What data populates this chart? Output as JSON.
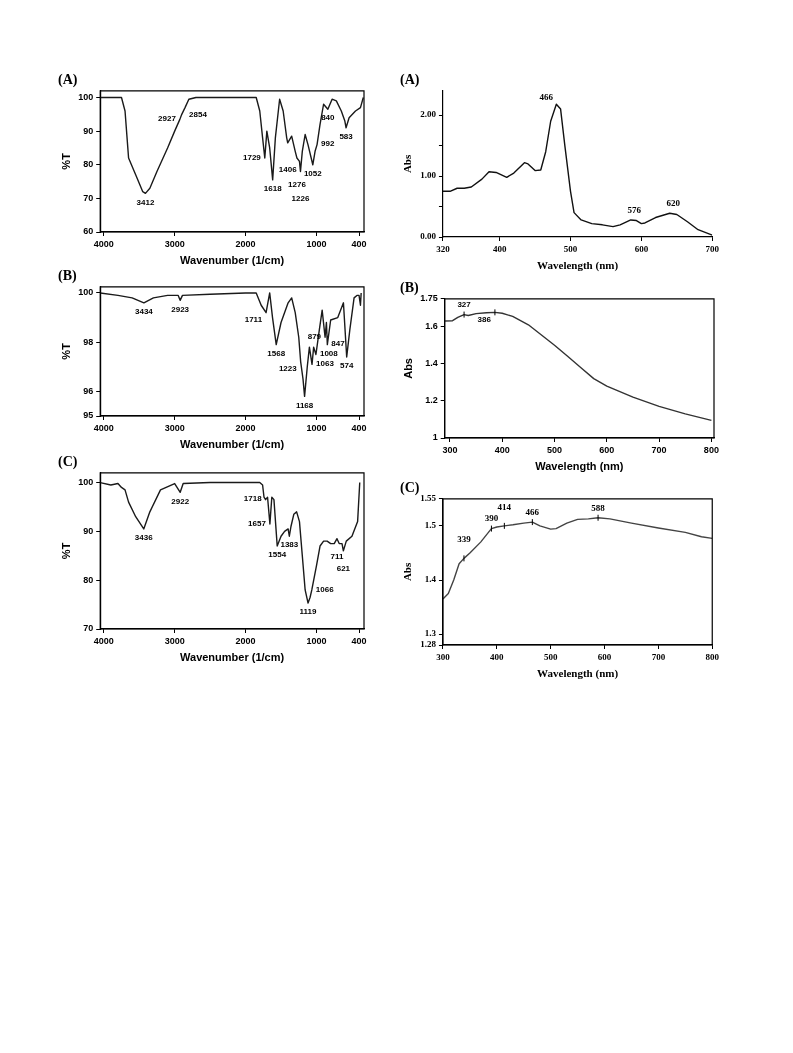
{
  "chart_data": [
    {
      "type": "line",
      "title": "(A)",
      "xlabel": "Wavenumber (1/cm)",
      "ylabel": "%T",
      "color": "#1a1a1a",
      "marker": "none",
      "xlim": [
        4050,
        330
      ],
      "xticks": [
        4000,
        3000,
        2000,
        1000,
        400
      ],
      "ylim": [
        60,
        102
      ],
      "yticks": [
        60,
        70,
        80,
        90,
        100
      ],
      "x": [
        4050,
        3750,
        3700,
        3650,
        3550,
        3450,
        3412,
        3350,
        3250,
        3100,
        3000,
        2927,
        2900,
        2854,
        2800,
        2700,
        2400,
        2000,
        1850,
        1800,
        1760,
        1729,
        1700,
        1660,
        1618,
        1580,
        1520,
        1470,
        1420,
        1406,
        1350,
        1300,
        1276,
        1240,
        1226,
        1200,
        1160,
        1120,
        1052,
        1020,
        992,
        950,
        900,
        840,
        780,
        720,
        650,
        600,
        583,
        540,
        450,
        380,
        340
      ],
      "values": [
        100,
        100,
        96,
        82,
        77,
        72,
        71.5,
        73,
        78,
        85,
        90,
        93.5,
        95,
        97,
        99.5,
        100,
        100,
        100,
        100,
        96,
        88,
        82,
        90,
        85,
        75.5,
        88,
        99.5,
        96,
        88,
        86.5,
        88.5,
        84,
        82,
        81,
        78,
        84,
        89,
        86,
        80,
        84,
        86,
        92,
        98,
        96.5,
        99.5,
        99,
        96,
        93,
        91,
        94,
        96,
        97,
        100
      ],
      "annotations": [
        {
          "text": "3412",
          "x": 3412,
          "y": 71.5
        },
        {
          "text": "2927",
          "x": 2927,
          "y": 93.5
        },
        {
          "text": "2854",
          "x": 2854,
          "y": 97
        },
        {
          "text": "1729",
          "x": 1729,
          "y": 82
        },
        {
          "text": "1618",
          "x": 1618,
          "y": 75.5
        },
        {
          "text": "1406",
          "x": 1406,
          "y": 86.5
        },
        {
          "text": "1276",
          "x": 1276,
          "y": 82
        },
        {
          "text": "1226",
          "x": 1226,
          "y": 78
        },
        {
          "text": "1052",
          "x": 1052,
          "y": 80
        },
        {
          "text": "992",
          "x": 992,
          "y": 86
        },
        {
          "text": "840",
          "x": 840,
          "y": 96.5
        },
        {
          "text": "583",
          "x": 583,
          "y": 91
        }
      ]
    },
    {
      "type": "line",
      "title": "(A)",
      "xlabel": "Wavelength (nm)",
      "ylabel": "Abs",
      "color": "#111111",
      "marker": "none",
      "xlim": [
        320,
        700
      ],
      "xticks": [
        320,
        400,
        500,
        600,
        700
      ],
      "ylim": [
        0,
        2.4
      ],
      "yticks": [
        {
          "value": 0,
          "label": "0.00"
        },
        {
          "value": 0.5,
          "label": null
        },
        {
          "value": 1,
          "label": "1.00"
        },
        {
          "value": 1.5,
          "label": null
        },
        {
          "value": 2,
          "label": "2.00"
        }
      ],
      "x": [
        320,
        330,
        340,
        350,
        360,
        375,
        385,
        395,
        410,
        420,
        435,
        440,
        450,
        458,
        465,
        472,
        480,
        486,
        492,
        500,
        505,
        515,
        530,
        545,
        560,
        570,
        585,
        593,
        600,
        605,
        620,
        640,
        650,
        665,
        680,
        700
      ],
      "values": [
        0.75,
        0.75,
        0.8,
        0.8,
        0.82,
        0.95,
        1.07,
        1.06,
        0.98,
        1.05,
        1.22,
        1.2,
        1.09,
        1.1,
        1.4,
        1.9,
        2.18,
        2.1,
        1.5,
        0.75,
        0.4,
        0.28,
        0.22,
        0.2,
        0.17,
        0.2,
        0.28,
        0.27,
        0.22,
        0.23,
        0.32,
        0.39,
        0.37,
        0.25,
        0.12,
        0.03
      ],
      "annotations": [
        {
          "text": "466",
          "x": 481,
          "y": 2.18
        },
        {
          "text": "576",
          "x": 590,
          "y": 0.28
        },
        {
          "text": "620",
          "x": 645,
          "y": 0.39
        }
      ]
    },
    {
      "type": "line",
      "title": "(B)",
      "xlabel": "Wavenumber (1/cm)",
      "ylabel": "%T",
      "color": "#1a1a1a",
      "marker": "none",
      "xlim": [
        4050,
        330
      ],
      "xticks": [
        4000,
        3000,
        2000,
        1000,
        400
      ],
      "ylim": [
        95,
        100.25
      ],
      "yticks": [
        95,
        96,
        98,
        100
      ],
      "x": [
        4050,
        3800,
        3600,
        3434,
        3300,
        3100,
        2950,
        2923,
        2890,
        2500,
        2000,
        1850,
        1780,
        1711,
        1660,
        1620,
        1568,
        1500,
        1400,
        1350,
        1300,
        1250,
        1223,
        1190,
        1168,
        1130,
        1100,
        1063,
        1040,
        1008,
        960,
        920,
        879,
        860,
        847,
        800,
        700,
        620,
        574,
        530,
        470,
        430,
        400,
        380,
        370
      ],
      "values": [
        100,
        99.9,
        99.8,
        99.6,
        99.8,
        99.9,
        99.9,
        99.7,
        99.9,
        99.95,
        100,
        100,
        99.5,
        99.2,
        100,
        99,
        97.9,
        98.8,
        99.6,
        99.8,
        99.2,
        98.2,
        97.2,
        96.5,
        95.8,
        97,
        97.8,
        97.1,
        97.8,
        97.5,
        98.5,
        99.3,
        98.2,
        98.8,
        97.9,
        98.9,
        99,
        99.6,
        97.4,
        98.5,
        99.8,
        99.9,
        99.9,
        99.5,
        100
      ],
      "annotations": [
        {
          "text": "3434",
          "x": 3434,
          "y": 99.6
        },
        {
          "text": "2923",
          "x": 2923,
          "y": 99.7
        },
        {
          "text": "1711",
          "x": 1711,
          "y": 99.2
        },
        {
          "text": "1568",
          "x": 1568,
          "y": 97.9
        },
        {
          "text": "1223",
          "x": 1223,
          "y": 97.2
        },
        {
          "text": "1168",
          "x": 1168,
          "y": 95.8
        },
        {
          "text": "1063",
          "x": 1063,
          "y": 97.1
        },
        {
          "text": "1008",
          "x": 1008,
          "y": 97.5
        },
        {
          "text": "879",
          "x": 879,
          "y": 98.2
        },
        {
          "text": "847",
          "x": 847,
          "y": 97.9
        },
        {
          "text": "574",
          "x": 574,
          "y": 97.4
        }
      ]
    },
    {
      "type": "line",
      "title": "(B)",
      "xlabel": "Wavelength (nm)",
      "ylabel": "Abs",
      "color": "#333333",
      "marker": "none",
      "xlim": [
        290,
        805
      ],
      "xticks": [
        300,
        400,
        500,
        600,
        700,
        800
      ],
      "ylim": [
        1,
        1.75
      ],
      "yticks": [
        1,
        1.2,
        1.4,
        1.6,
        1.75
      ],
      "x": [
        290,
        305,
        315,
        327,
        335,
        350,
        370,
        386,
        400,
        420,
        450,
        500,
        525,
        550,
        575,
        600,
        650,
        700,
        750,
        800
      ],
      "values": [
        1.63,
        1.632,
        1.65,
        1.665,
        1.66,
        1.67,
        1.675,
        1.677,
        1.672,
        1.655,
        1.61,
        1.5,
        1.44,
        1.38,
        1.32,
        1.28,
        1.22,
        1.17,
        1.13,
        1.095
      ],
      "annotations": [
        {
          "text": "327",
          "x": 327,
          "y": 1.665
        },
        {
          "text": "386",
          "x": 386,
          "y": 1.677
        }
      ]
    },
    {
      "type": "line",
      "title": "(C)",
      "xlabel": "Wavenumber (1/cm)",
      "ylabel": "%T",
      "color": "#1a1a1a",
      "marker": "none",
      "xlim": [
        4050,
        330
      ],
      "xticks": [
        4000,
        3000,
        2000,
        1000,
        400
      ],
      "ylim": [
        70,
        102
      ],
      "yticks": [
        70,
        80,
        90,
        100
      ],
      "x": [
        4050,
        3900,
        3800,
        3750,
        3700,
        3650,
        3550,
        3436,
        3350,
        3200,
        3000,
        2922,
        2880,
        2500,
        2000,
        1800,
        1760,
        1740,
        1718,
        1690,
        1657,
        1630,
        1600,
        1554,
        1500,
        1450,
        1400,
        1383,
        1360,
        1320,
        1280,
        1240,
        1200,
        1160,
        1119,
        1090,
        1066,
        1000,
        950,
        900,
        850,
        800,
        750,
        711,
        680,
        640,
        621,
        580,
        500,
        420,
        390
      ],
      "values": [
        100,
        99.5,
        99.8,
        99,
        98.5,
        96,
        93,
        90.5,
        94,
        98.5,
        99.8,
        98,
        99.8,
        100,
        100,
        100,
        99.5,
        97,
        96.5,
        97,
        91.5,
        97,
        96.5,
        87,
        89,
        90,
        90.5,
        89,
        91,
        93.5,
        94,
        92,
        85,
        78,
        75.3,
        76.5,
        78,
        83,
        87,
        88,
        88,
        87.5,
        87.5,
        88.5,
        87.5,
        87.5,
        86,
        88,
        89,
        92,
        100
      ],
      "annotations": [
        {
          "text": "3436",
          "x": 3436,
          "y": 90.5
        },
        {
          "text": "2922",
          "x": 2922,
          "y": 98
        },
        {
          "text": "1718",
          "x": 1718,
          "y": 96.5
        },
        {
          "text": "1657",
          "x": 1657,
          "y": 91.5
        },
        {
          "text": "1554",
          "x": 1554,
          "y": 87
        },
        {
          "text": "1383",
          "x": 1383,
          "y": 89
        },
        {
          "text": "1119",
          "x": 1119,
          "y": 75.3
        },
        {
          "text": "1066",
          "x": 1066,
          "y": 78
        },
        {
          "text": "711",
          "x": 711,
          "y": 88.5
        },
        {
          "text": "621",
          "x": 621,
          "y": 86
        }
      ]
    },
    {
      "type": "line",
      "title": "(C)",
      "xlabel": "Wavelength (nm)",
      "ylabel": "Abs",
      "color": "#444444",
      "marker": "none",
      "xlim": [
        300,
        800
      ],
      "xticks": [
        300,
        400,
        500,
        600,
        700,
        800
      ],
      "ylim": [
        1.28,
        1.55
      ],
      "yticks": [
        1.28,
        1.3,
        1.4,
        1.5,
        1.55
      ],
      "x": [
        300,
        310,
        320,
        330,
        339,
        350,
        370,
        390,
        400,
        414,
        430,
        450,
        466,
        480,
        500,
        510,
        530,
        550,
        570,
        588,
        610,
        650,
        700,
        750,
        780,
        800
      ],
      "values": [
        1.365,
        1.375,
        1.4,
        1.43,
        1.44,
        1.45,
        1.47,
        1.495,
        1.498,
        1.5,
        1.502,
        1.505,
        1.507,
        1.5,
        1.494,
        1.495,
        1.505,
        1.512,
        1.513,
        1.515,
        1.513,
        1.505,
        1.496,
        1.488,
        1.48,
        1.477
      ],
      "annotations": [
        {
          "text": "339",
          "x": 339,
          "y": 1.44
        },
        {
          "text": "390",
          "x": 390,
          "y": 1.495
        },
        {
          "text": "414",
          "x": 414,
          "y": 1.5
        },
        {
          "text": "466",
          "x": 466,
          "y": 1.507
        },
        {
          "text": "588",
          "x": 588,
          "y": 1.515
        }
      ]
    }
  ]
}
